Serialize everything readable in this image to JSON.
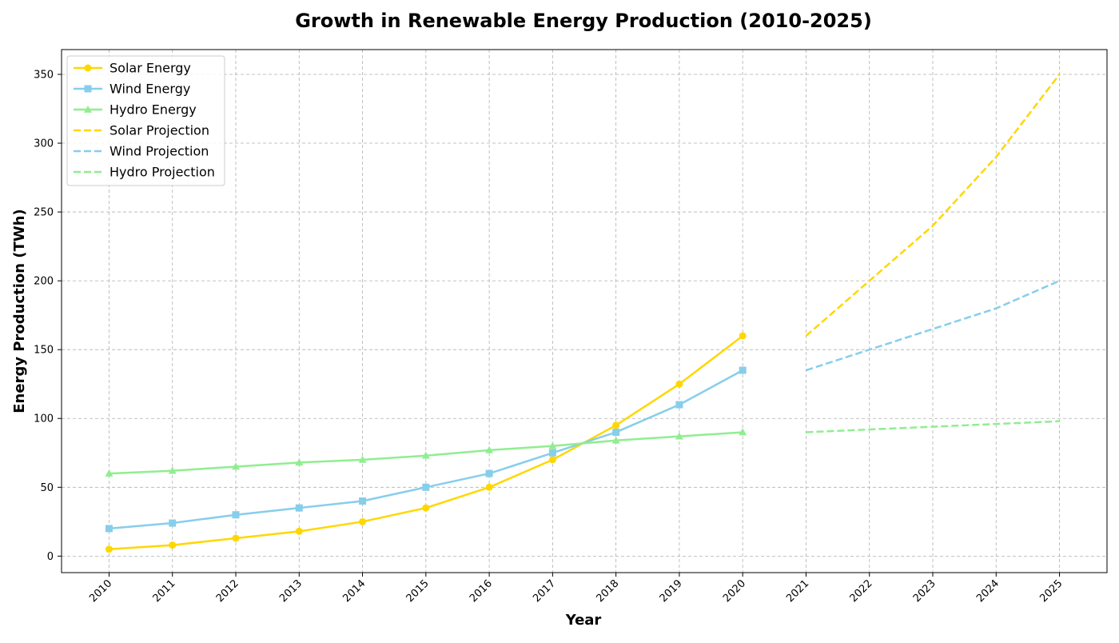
{
  "chart_data": {
    "type": "line",
    "title": "Growth in Renewable Energy Production (2010-2025)",
    "xlabel": "Year",
    "ylabel": "Energy Production (TWh)",
    "x_ticks": [
      "2010",
      "2011",
      "2012",
      "2013",
      "2014",
      "2015",
      "2016",
      "2017",
      "2018",
      "2019",
      "2020",
      "2021",
      "2022",
      "2023",
      "2024",
      "2025"
    ],
    "y_ticks": [
      0,
      50,
      100,
      150,
      200,
      250,
      300,
      350
    ],
    "xlim": [
      2009.25,
      2025.75
    ],
    "ylim": [
      -12,
      368
    ],
    "grid": true,
    "legend_position": "upper-left",
    "series": [
      {
        "name": "Solar Energy",
        "color": "#FFD700",
        "style": "solid",
        "marker": "circle",
        "x": [
          2010,
          2011,
          2012,
          2013,
          2014,
          2015,
          2016,
          2017,
          2018,
          2019,
          2020
        ],
        "values": [
          5,
          8,
          13,
          18,
          25,
          35,
          50,
          70,
          95,
          125,
          160
        ]
      },
      {
        "name": "Wind Energy",
        "color": "#87CEEB",
        "style": "solid",
        "marker": "square",
        "x": [
          2010,
          2011,
          2012,
          2013,
          2014,
          2015,
          2016,
          2017,
          2018,
          2019,
          2020
        ],
        "values": [
          20,
          24,
          30,
          35,
          40,
          50,
          60,
          75,
          90,
          110,
          135
        ]
      },
      {
        "name": "Hydro Energy",
        "color": "#90EE90",
        "style": "solid",
        "marker": "triangle",
        "x": [
          2010,
          2011,
          2012,
          2013,
          2014,
          2015,
          2016,
          2017,
          2018,
          2019,
          2020
        ],
        "values": [
          60,
          62,
          65,
          68,
          70,
          73,
          77,
          80,
          84,
          87,
          90
        ]
      },
      {
        "name": "Solar Projection",
        "color": "#FFD700",
        "style": "dashed",
        "marker": "none",
        "x": [
          2021,
          2022,
          2023,
          2024,
          2025
        ],
        "values": [
          160,
          200,
          240,
          290,
          350
        ]
      },
      {
        "name": "Wind Projection",
        "color": "#87CEEB",
        "style": "dashed",
        "marker": "none",
        "x": [
          2021,
          2022,
          2023,
          2024,
          2025
        ],
        "values": [
          135,
          150,
          165,
          180,
          200
        ]
      },
      {
        "name": "Hydro Projection",
        "color": "#90EE90",
        "style": "dashed",
        "marker": "none",
        "x": [
          2021,
          2022,
          2023,
          2024,
          2025
        ],
        "values": [
          90,
          92,
          94,
          96,
          98
        ]
      }
    ]
  }
}
